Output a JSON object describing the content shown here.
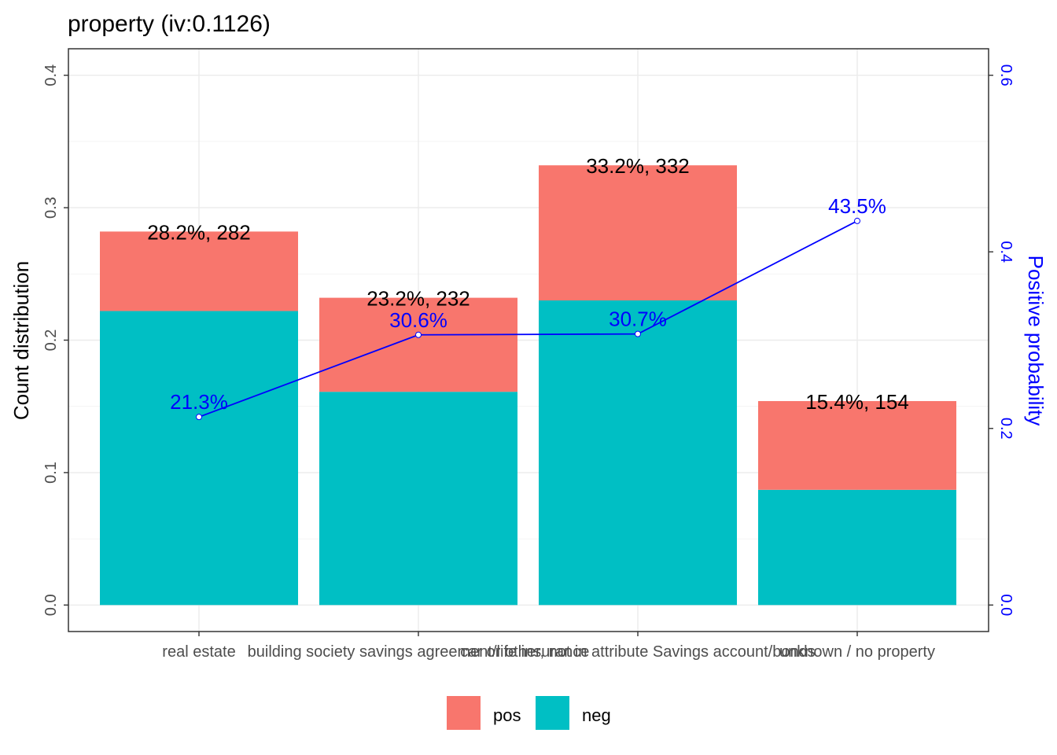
{
  "chart_data": {
    "type": "bar",
    "title": "property  (iv:0.1126)",
    "ylabel": "Count distribution",
    "y2label": "Positive probability",
    "ylim": [
      -0.02,
      0.42
    ],
    "y_ticks": [
      0.0,
      0.1,
      0.2,
      0.3,
      0.4
    ],
    "y2lim": [
      -0.03,
      0.63
    ],
    "y2_ticks": [
      0.0,
      0.2,
      0.4,
      0.6
    ],
    "categories": [
      "real estate",
      "building society savings agreement/life insurance",
      "car or other, not in attribute Savings account/bonds",
      "unknown / no property"
    ],
    "series": [
      {
        "name": "pos",
        "color": "#F8766D",
        "values": [
          0.06,
          0.071,
          0.102,
          0.067
        ]
      },
      {
        "name": "neg",
        "color": "#00BFC4",
        "values": [
          0.222,
          0.161,
          0.23,
          0.087
        ]
      }
    ],
    "bar_labels": [
      "28.2%, 282",
      "23.2%, 232",
      "33.2%, 332",
      "15.4%, 154"
    ],
    "totals": [
      0.282,
      0.232,
      0.332,
      0.154
    ],
    "positive_probability": {
      "color": "#0000FF",
      "values": [
        0.213,
        0.306,
        0.307,
        0.435
      ],
      "labels": [
        "21.3%",
        "30.6%",
        "30.7%",
        "43.5%"
      ]
    },
    "grid": true,
    "legend": {
      "position": "bottom",
      "items": [
        "pos",
        "neg"
      ]
    }
  }
}
